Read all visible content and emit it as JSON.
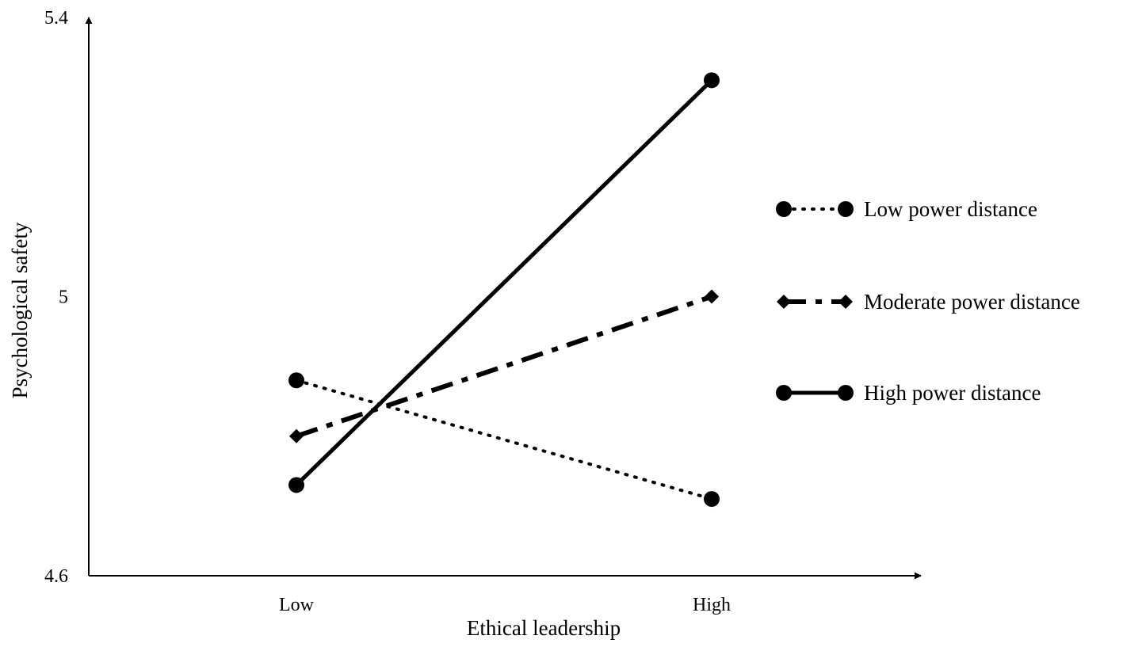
{
  "chart_data": {
    "type": "line",
    "title": "",
    "xlabel": "Ethical leadership",
    "ylabel": "Psychological safety",
    "categories": [
      "Low",
      "High"
    ],
    "ylim": [
      4.6,
      5.4
    ],
    "yticks": [
      "4.6",
      "5",
      "5.4"
    ],
    "grid": false,
    "legend_position": "right",
    "series": [
      {
        "name": "Low power distance",
        "values": [
          4.88,
          4.71
        ],
        "line_style": "dotted",
        "marker": "circle",
        "color": "#000000"
      },
      {
        "name": "Moderate power distance",
        "values": [
          4.8,
          5.0
        ],
        "line_style": "dash-dot",
        "marker": "diamond",
        "color": "#000000"
      },
      {
        "name": "High power distance",
        "values": [
          4.73,
          5.31
        ],
        "line_style": "solid",
        "marker": "circle",
        "color": "#000000"
      }
    ]
  }
}
